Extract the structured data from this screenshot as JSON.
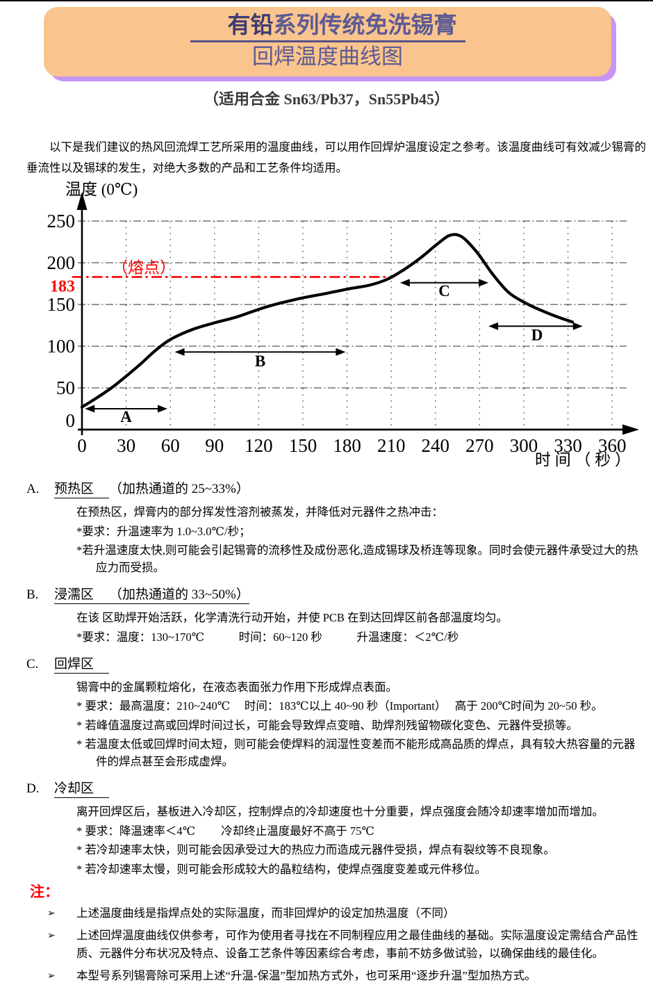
{
  "page": {
    "title_line1_highlight": "有铅",
    "title_line1_rest": "系列传统免洗锡膏",
    "title_line2": "回焊温度曲线图",
    "subtitle": "（适用合金 Sn63/Pb37，Sn55Pb45）",
    "intro": "以下是我们建议的热风回流焊工艺所采用的温度曲线，可以用作回焊炉温度设定之参考。该温度曲线可有效减少锡膏的垂流性以及锡球的发生，对绝大多数的产品和工艺条件均适用。"
  },
  "colors": {
    "title_box_bg": "#F9C48D",
    "title_box_shadow": "#C795F3",
    "title_highlight": "#3F3B72",
    "title_text": "#5C5A94",
    "melting_line": "#FF0000",
    "note_red": "#FF0000",
    "curve": "#000000"
  },
  "chart_data": {
    "type": "line",
    "title": "回焊温度曲线图",
    "ylabel": "温度 (0℃)",
    "xlabel": "时 间 （ 秒 ）",
    "xlim": [
      0,
      380
    ],
    "ylim": [
      0,
      270
    ],
    "x_ticks": [
      0,
      30,
      60,
      90,
      120,
      150,
      180,
      210,
      240,
      270,
      300,
      330,
      360
    ],
    "y_ticks": [
      0,
      50,
      100,
      150,
      200,
      250
    ],
    "grid": {
      "h_lines": [
        50,
        100,
        150,
        200,
        250
      ],
      "v_lines": [
        30,
        60,
        90,
        120,
        150,
        180,
        210,
        240,
        270,
        300,
        330,
        360
      ]
    },
    "melting_point": {
      "value": 183,
      "label": "183",
      "annotation": "（熔点）",
      "line_end_t": 210,
      "color": "#FF0000"
    },
    "series": [
      {
        "name": "回焊温度曲线",
        "points": [
          [
            0,
            27
          ],
          [
            10,
            38
          ],
          [
            20,
            50
          ],
          [
            30,
            64
          ],
          [
            40,
            79
          ],
          [
            50,
            95
          ],
          [
            60,
            108
          ],
          [
            75,
            120
          ],
          [
            90,
            128
          ],
          [
            105,
            135
          ],
          [
            125,
            147
          ],
          [
            145,
            156
          ],
          [
            165,
            163
          ],
          [
            182,
            169
          ],
          [
            195,
            173
          ],
          [
            207,
            180
          ],
          [
            218,
            191
          ],
          [
            230,
            206
          ],
          [
            241,
            222
          ],
          [
            250,
            233
          ],
          [
            258,
            231
          ],
          [
            268,
            213
          ],
          [
            279,
            186
          ],
          [
            290,
            164
          ],
          [
            302,
            151
          ],
          [
            313,
            142
          ],
          [
            323,
            135
          ],
          [
            333,
            129
          ]
        ]
      }
    ],
    "zones": [
      {
        "label": "A",
        "t_start": 2,
        "t_end": 58,
        "level": 25,
        "label_t": 30,
        "label_level": 9
      },
      {
        "label": "B",
        "t_start": 63,
        "t_end": 179,
        "level": 93,
        "label_t": 121,
        "label_level": 76
      },
      {
        "label": "C",
        "t_start": 216,
        "t_end": 276,
        "level": 176,
        "label_t": 246,
        "label_level": 160
      },
      {
        "label": "D",
        "t_start": 276,
        "t_end": 340,
        "level": 124,
        "label_t": 309,
        "label_level": 107
      }
    ]
  },
  "sections": [
    {
      "label": "A.",
      "heading": "预热区",
      "heading_suffix": "（加热通道的 25~33%）",
      "underline_suffix": false,
      "lines": [
        "在预热区，焊膏内的部分挥发性溶剂被蒸发，并降低对元器件之热冲击：",
        "*要求：升温速率为 1.0~3.0℃/秒；",
        "*若升温速度太快,则可能会引起锡膏的流移性及成份恶化,造成锡球及桥连等现象。同时会使元器件承受过大的热应力而受损。"
      ]
    },
    {
      "label": "B.",
      "heading": "浸濡区",
      "heading_suffix": "（加热通道的 33~50%）",
      "underline_suffix": true,
      "lines": [
        "在该 区助焊开始活跃，化学清洗行动开始，并使 PCB 在到达回焊区前各部温度均匀。",
        "*要求：温度：130~170℃　　　时间：60~120 秒　　　升温速度：＜2℃/秒"
      ]
    },
    {
      "label": "C.",
      "heading": "回焊区",
      "heading_suffix": "",
      "underline_suffix": false,
      "lines": [
        "锡膏中的金属颗粒熔化，在液态表面张力作用下形成焊点表面。",
        "* 要求：最高温度：210~240℃　 时间：183℃以上 40~90 秒（Important）　 高于 200℃时间为 20~50 秒。",
        "* 若峰值温度过高或回焊时间过长，可能会导致焊点变暗、助焊剂残留物碳化变色、元器件受损等。",
        "* 若温度太低或回焊时间太短，则可能会使焊料的润湿性变差而不能形成高品质的焊点，具有较大热容量的元器件的焊点甚至会形成虚焊。"
      ]
    },
    {
      "label": "D.",
      "heading": "冷却区",
      "heading_suffix": "",
      "underline_suffix": false,
      "lines": [
        "离开回焊区后，基板进入冷却区，控制焊点的冷却速度也十分重要，焊点强度会随冷却速率增加而增加。",
        "* 要求：降温速率＜4℃　　 冷却终止温度最好不高于 75℃",
        "* 若冷却速率太快，则可能会因承受过大的热应力而造成元器件受损，焊点有裂纹等不良现象。",
        "* 若冷却速率太慢，则可能会形成较大的晶粒结构，使焊点强度变差或元件移位。"
      ]
    }
  ],
  "notes": {
    "title": "注：",
    "bullet": "➢",
    "items": [
      "上述温度曲线是指焊点处的实际温度，而非回焊炉的设定加热温度（不同）",
      "上述回焊温度曲线仅供参考，可作为使用者寻找在不同制程应用之最佳曲线的基础。实际温度设定需结合产品性质、元器件分布状况及特点、设备工艺条件等因素综合考虑，事前不妨多做试验，以确保曲线的最佳化。",
      "本型号系列锡膏除可采用上述“升温-保温”型加热方式外，也可采用“逐步升温”型加热方式。"
    ]
  }
}
